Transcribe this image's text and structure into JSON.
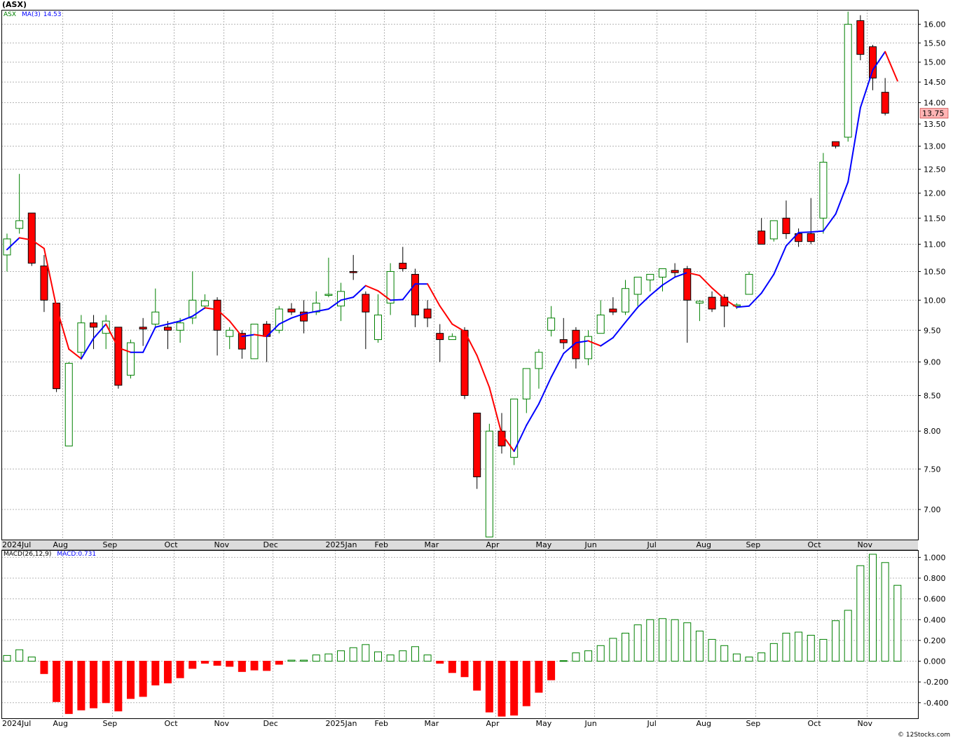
{
  "header": {
    "symbol_title": "(ASX)",
    "price_legend": {
      "symbol": "ASX",
      "ma_label": "MA(3)",
      "ma_value": "14.53"
    },
    "macd_legend": {
      "label": "MACD(26,12,9)",
      "value_label": "MACD:0.731"
    },
    "credit": "© 12Stocks.com"
  },
  "colors": {
    "up_candle": "#008000",
    "down_candle": "#ff0000",
    "ma_up": "#0000ff",
    "ma_down": "#ff0000",
    "grid": "#b4b4b4",
    "last_price_bg": "#ffb4b4"
  },
  "chart_data": [
    {
      "type": "candlestick",
      "name": "ASX weekly price",
      "ylim": [
        6.65,
        16.4
      ],
      "scale": "log",
      "yticks": [
        "7.00",
        "7.50",
        "8.00",
        "8.50",
        "9.00",
        "9.50",
        "10.00",
        "10.50",
        "11.00",
        "11.50",
        "12.00",
        "12.50",
        "13.00",
        "13.50",
        "14.00",
        "14.50",
        "15.00",
        "15.50",
        "16.00"
      ],
      "month_labels": [
        {
          "label": "2024Jul",
          "week": 0
        },
        {
          "label": "Aug",
          "week": 5
        },
        {
          "label": "Sep",
          "week": 9
        },
        {
          "label": "Oct",
          "week": 14
        },
        {
          "label": "Nov",
          "week": 18
        },
        {
          "label": "Dec",
          "week": 22
        },
        {
          "label": "2025Jan",
          "week": 27
        },
        {
          "label": "Feb",
          "week": 31
        },
        {
          "label": "Mar",
          "week": 35
        },
        {
          "label": "Apr",
          "week": 40
        },
        {
          "label": "May",
          "week": 44
        },
        {
          "label": "Jun",
          "week": 48
        },
        {
          "label": "Jul",
          "week": 53
        },
        {
          "label": "Aug",
          "week": 57
        },
        {
          "label": "Sep",
          "week": 61
        },
        {
          "label": "Oct",
          "week": 66
        },
        {
          "label": "Nov",
          "week": 70
        }
      ],
      "last_price": "13.75",
      "candles": [
        {
          "o": 10.8,
          "h": 11.2,
          "l": 10.5,
          "c": 11.1
        },
        {
          "o": 11.3,
          "h": 12.4,
          "l": 11.2,
          "c": 11.45
        },
        {
          "o": 11.6,
          "h": 11.6,
          "l": 10.6,
          "c": 10.65
        },
        {
          "o": 10.6,
          "h": 10.8,
          "l": 9.8,
          "c": 10.0
        },
        {
          "o": 9.95,
          "h": 9.95,
          "l": 8.55,
          "c": 8.6
        },
        {
          "o": 7.8,
          "h": 9.0,
          "l": 7.8,
          "c": 8.98
        },
        {
          "o": 9.15,
          "h": 9.75,
          "l": 9.05,
          "c": 9.62
        },
        {
          "o": 9.62,
          "h": 9.75,
          "l": 9.2,
          "c": 9.55
        },
        {
          "o": 9.45,
          "h": 9.75,
          "l": 9.2,
          "c": 9.65
        },
        {
          "o": 9.55,
          "h": 9.55,
          "l": 8.6,
          "c": 8.65
        },
        {
          "o": 8.8,
          "h": 9.35,
          "l": 8.75,
          "c": 9.3
        },
        {
          "o": 9.55,
          "h": 9.7,
          "l": 9.25,
          "c": 9.52
        },
        {
          "o": 9.6,
          "h": 10.2,
          "l": 9.55,
          "c": 9.8
        },
        {
          "o": 9.55,
          "h": 9.65,
          "l": 9.2,
          "c": 9.5
        },
        {
          "o": 9.5,
          "h": 9.7,
          "l": 9.3,
          "c": 9.62
        },
        {
          "o": 9.7,
          "h": 10.5,
          "l": 9.6,
          "c": 10.0
        },
        {
          "o": 9.9,
          "h": 10.1,
          "l": 9.85,
          "c": 9.99
        },
        {
          "o": 10.0,
          "h": 10.05,
          "l": 9.1,
          "c": 9.5
        },
        {
          "o": 9.4,
          "h": 9.55,
          "l": 9.2,
          "c": 9.5
        },
        {
          "o": 9.45,
          "h": 9.5,
          "l": 9.05,
          "c": 9.2
        },
        {
          "o": 9.05,
          "h": 9.55,
          "l": 9.05,
          "c": 9.6
        },
        {
          "o": 9.6,
          "h": 9.65,
          "l": 9.0,
          "c": 9.4
        },
        {
          "o": 9.5,
          "h": 9.9,
          "l": 9.45,
          "c": 9.85
        },
        {
          "o": 9.85,
          "h": 9.95,
          "l": 9.75,
          "c": 9.8
        },
        {
          "o": 9.8,
          "h": 10.0,
          "l": 9.45,
          "c": 9.65
        },
        {
          "o": 9.8,
          "h": 10.15,
          "l": 9.75,
          "c": 9.95
        },
        {
          "o": 10.1,
          "h": 10.75,
          "l": 10.05,
          "c": 10.1
        },
        {
          "o": 9.9,
          "h": 10.3,
          "l": 9.65,
          "c": 10.15
        },
        {
          "o": 10.5,
          "h": 10.8,
          "l": 10.35,
          "c": 10.48
        },
        {
          "o": 10.1,
          "h": 10.15,
          "l": 9.2,
          "c": 9.8
        },
        {
          "o": 9.35,
          "h": 10.1,
          "l": 9.3,
          "c": 9.75
        },
        {
          "o": 9.95,
          "h": 10.65,
          "l": 9.75,
          "c": 10.5
        },
        {
          "o": 10.65,
          "h": 10.95,
          "l": 10.5,
          "c": 10.55
        },
        {
          "o": 10.45,
          "h": 10.55,
          "l": 9.55,
          "c": 9.75
        },
        {
          "o": 9.85,
          "h": 10.0,
          "l": 9.55,
          "c": 9.7
        },
        {
          "o": 9.45,
          "h": 9.6,
          "l": 9.0,
          "c": 9.35
        },
        {
          "o": 9.35,
          "h": 9.45,
          "l": 9.35,
          "c": 9.4
        },
        {
          "o": 9.5,
          "h": 9.55,
          "l": 8.45,
          "c": 8.5
        },
        {
          "o": 8.25,
          "h": 8.25,
          "l": 7.25,
          "c": 7.4
        },
        {
          "o": 6.68,
          "h": 8.1,
          "l": 6.68,
          "c": 8.0
        },
        {
          "o": 8.0,
          "h": 8.25,
          "l": 7.7,
          "c": 7.8
        },
        {
          "o": 7.65,
          "h": 8.45,
          "l": 7.55,
          "c": 8.45
        },
        {
          "o": 8.45,
          "h": 8.9,
          "l": 8.25,
          "c": 8.9
        },
        {
          "o": 8.9,
          "h": 9.2,
          "l": 8.6,
          "c": 9.15
        },
        {
          "o": 9.5,
          "h": 9.9,
          "l": 9.4,
          "c": 9.7
        },
        {
          "o": 9.35,
          "h": 9.7,
          "l": 9.2,
          "c": 9.3
        },
        {
          "o": 9.5,
          "h": 9.55,
          "l": 8.9,
          "c": 9.05
        },
        {
          "o": 9.05,
          "h": 9.5,
          "l": 8.95,
          "c": 9.4
        },
        {
          "o": 9.45,
          "h": 10.0,
          "l": 9.45,
          "c": 9.75
        },
        {
          "o": 9.85,
          "h": 10.05,
          "l": 9.75,
          "c": 9.8
        },
        {
          "o": 9.8,
          "h": 10.35,
          "l": 9.75,
          "c": 10.2
        },
        {
          "o": 10.1,
          "h": 10.4,
          "l": 9.9,
          "c": 10.4
        },
        {
          "o": 10.35,
          "h": 10.45,
          "l": 10.15,
          "c": 10.45
        },
        {
          "o": 10.4,
          "h": 10.55,
          "l": 10.15,
          "c": 10.55
        },
        {
          "o": 10.52,
          "h": 10.65,
          "l": 10.4,
          "c": 10.48
        },
        {
          "o": 10.55,
          "h": 10.6,
          "l": 9.3,
          "c": 10.0
        },
        {
          "o": 9.95,
          "h": 10.0,
          "l": 9.65,
          "c": 9.98
        },
        {
          "o": 10.05,
          "h": 10.15,
          "l": 9.8,
          "c": 9.85
        },
        {
          "o": 10.05,
          "h": 10.1,
          "l": 9.55,
          "c": 9.9
        },
        {
          "o": 9.9,
          "h": 9.95,
          "l": 9.85,
          "c": 9.92
        },
        {
          "o": 10.1,
          "h": 10.5,
          "l": 10.1,
          "c": 10.45
        },
        {
          "o": 11.25,
          "h": 11.5,
          "l": 11.0,
          "c": 11.0
        },
        {
          "o": 11.1,
          "h": 11.45,
          "l": 11.05,
          "c": 11.45
        },
        {
          "o": 11.5,
          "h": 11.85,
          "l": 11.1,
          "c": 11.2
        },
        {
          "o": 11.2,
          "h": 11.3,
          "l": 10.95,
          "c": 11.05
        },
        {
          "o": 11.2,
          "h": 11.9,
          "l": 11.0,
          "c": 11.05
        },
        {
          "o": 11.5,
          "h": 12.85,
          "l": 11.2,
          "c": 12.65
        },
        {
          "o": 13.1,
          "h": 13.1,
          "l": 12.95,
          "c": 13.0
        },
        {
          "o": 13.2,
          "h": 16.35,
          "l": 13.1,
          "c": 16.0
        },
        {
          "o": 16.1,
          "h": 16.25,
          "l": 15.05,
          "c": 15.2
        },
        {
          "o": 15.4,
          "h": 15.45,
          "l": 14.3,
          "c": 14.6
        },
        {
          "o": 14.25,
          "h": 14.6,
          "l": 13.7,
          "c": 13.75
        }
      ],
      "ma3": [
        10.9,
        11.12,
        11.08,
        10.92,
        9.88,
        9.2,
        9.05,
        9.37,
        9.6,
        9.22,
        9.15,
        9.15,
        9.55,
        9.6,
        9.65,
        9.73,
        9.87,
        9.84,
        9.65,
        9.4,
        9.43,
        9.4,
        9.6,
        9.7,
        9.77,
        9.81,
        9.85,
        10.0,
        10.05,
        10.25,
        10.16,
        10.0,
        10.01,
        10.28,
        10.28,
        9.9,
        9.6,
        9.48,
        9.1,
        8.62,
        7.96,
        7.73,
        8.08,
        8.38,
        8.77,
        9.13,
        9.3,
        9.33,
        9.25,
        9.38,
        9.63,
        9.88,
        10.08,
        10.26,
        10.4,
        10.48,
        10.43,
        10.21,
        10.02,
        9.88,
        9.9,
        10.12,
        10.45,
        10.97,
        11.22,
        11.23,
        11.25,
        11.58,
        12.23,
        13.88,
        14.8,
        15.27,
        14.53
      ]
    },
    {
      "type": "bar",
      "name": "MACD(26,12,9)",
      "ylim": [
        -0.55,
        1.07
      ],
      "yticks": [
        "-0.400",
        "-0.200",
        "0.000",
        "0.200",
        "0.400",
        "0.600",
        "0.800",
        "1.000"
      ],
      "current": 0.731,
      "values": [
        0.055,
        0.11,
        0.04,
        -0.12,
        -0.39,
        -0.505,
        -0.47,
        -0.45,
        -0.4,
        -0.48,
        -0.36,
        -0.34,
        -0.23,
        -0.21,
        -0.16,
        -0.07,
        -0.02,
        -0.04,
        -0.05,
        -0.1,
        -0.085,
        -0.09,
        -0.03,
        0.01,
        0.01,
        0.06,
        0.07,
        0.1,
        0.13,
        0.16,
        0.09,
        0.06,
        0.1,
        0.14,
        0.06,
        -0.02,
        -0.11,
        -0.15,
        -0.28,
        -0.49,
        -0.53,
        -0.52,
        -0.43,
        -0.3,
        -0.18,
        0.005,
        0.08,
        0.1,
        0.15,
        0.22,
        0.27,
        0.35,
        0.4,
        0.41,
        0.4,
        0.37,
        0.29,
        0.21,
        0.15,
        0.07,
        0.04,
        0.08,
        0.17,
        0.27,
        0.28,
        0.25,
        0.21,
        0.39,
        0.49,
        0.92,
        1.03,
        0.95,
        0.731
      ]
    }
  ]
}
